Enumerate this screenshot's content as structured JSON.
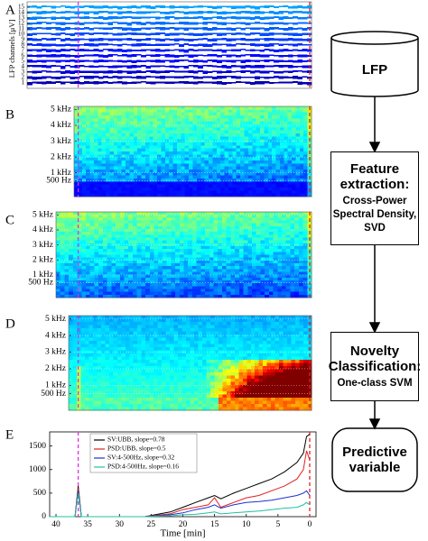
{
  "panels": [
    {
      "label": "A",
      "ylabel": "LFP channels [μV]",
      "ylim": [
        0,
        16
      ],
      "yticks": [
        1,
        2,
        3,
        4,
        5,
        6,
        7,
        8,
        9,
        10,
        11,
        12,
        13,
        14,
        15
      ]
    },
    {
      "label": "B",
      "ylim": [
        -500,
        5200
      ],
      "yticks": [
        {
          "value": 500,
          "label": "500 Hz"
        },
        {
          "value": 1000,
          "label": "1 kHz"
        },
        {
          "value": 2000,
          "label": "2 kHz"
        },
        {
          "value": 3000,
          "label": "3 kHz"
        },
        {
          "value": 4000,
          "label": "4 kHz"
        },
        {
          "value": 5000,
          "label": "5 kHz"
        }
      ]
    },
    {
      "label": "C",
      "ylim": [
        -500,
        5200
      ],
      "yticks": [
        {
          "value": 500,
          "label": "500 Hz"
        },
        {
          "value": 1000,
          "label": "1 kHz"
        },
        {
          "value": 2000,
          "label": "2 kHz"
        },
        {
          "value": 3000,
          "label": "3 kHz"
        },
        {
          "value": 4000,
          "label": "4 kHz"
        },
        {
          "value": 5000,
          "label": "5 kHz"
        }
      ]
    },
    {
      "label": "D",
      "ylim": [
        -500,
        5200
      ],
      "yticks": [
        {
          "value": 500,
          "label": "500 Hz"
        },
        {
          "value": 1000,
          "label": "1 kHz"
        },
        {
          "value": 2000,
          "label": "2 kHz"
        },
        {
          "value": 3000,
          "label": "3 kHz"
        },
        {
          "value": 4000,
          "label": "4 kHz"
        },
        {
          "value": 5000,
          "label": "5 kHz"
        }
      ]
    }
  ],
  "chart_data": {
    "type": "line",
    "label": "E",
    "xlabel": "Time [min]",
    "x": [
      41,
      37,
      36.5,
      36,
      26,
      24,
      22,
      20,
      18,
      16,
      15,
      14,
      12,
      10,
      8,
      6,
      4,
      2,
      1,
      0.5,
      0
    ],
    "xlim": [
      41,
      -1
    ],
    "xticks": [
      40,
      35,
      30,
      25,
      20,
      15,
      10,
      5,
      0
    ],
    "ylim": [
      0,
      1800
    ],
    "yticks": [
      0,
      500,
      1000,
      1500
    ],
    "event_lines": [
      {
        "x": 36.5,
        "color": "#e030e0"
      },
      {
        "x": 0,
        "color": "#e02020"
      }
    ],
    "series": [
      {
        "name": "SV:UBB, slope=0.78",
        "color": "#000000",
        "values": [
          0,
          0,
          650,
          0,
          0,
          50,
          100,
          200,
          300,
          400,
          450,
          380,
          500,
          600,
          700,
          800,
          950,
          1150,
          1350,
          1700,
          1750
        ]
      },
      {
        "name": "PSD:UBB, slope=0.5",
        "color": "#e02020",
        "values": [
          0,
          0,
          600,
          0,
          0,
          30,
          60,
          150,
          200,
          250,
          400,
          200,
          300,
          400,
          450,
          550,
          650,
          800,
          1000,
          1400,
          1200
        ]
      },
      {
        "name": "SV:4-500Hz, slope=0.32",
        "color": "#2030d0",
        "values": [
          0,
          0,
          550,
          0,
          0,
          20,
          40,
          80,
          150,
          200,
          250,
          180,
          250,
          300,
          320,
          350,
          400,
          450,
          500,
          550,
          450
        ]
      },
      {
        "name": "PSD:4-500Hz, slope=0.16",
        "color": "#20c0a0",
        "values": [
          0,
          0,
          500,
          0,
          0,
          10,
          20,
          40,
          50,
          80,
          100,
          60,
          80,
          100,
          120,
          150,
          180,
          200,
          250,
          300,
          250
        ]
      }
    ]
  },
  "flowchart": {
    "nodes": [
      {
        "title": "LFP"
      },
      {
        "title": "Feature extraction:",
        "subtitle": "Cross-Power Spectral Density, SVD"
      },
      {
        "title": "Novelty Classification:",
        "subtitle": "One-class SVM"
      },
      {
        "title": "Predictive variable"
      }
    ]
  }
}
